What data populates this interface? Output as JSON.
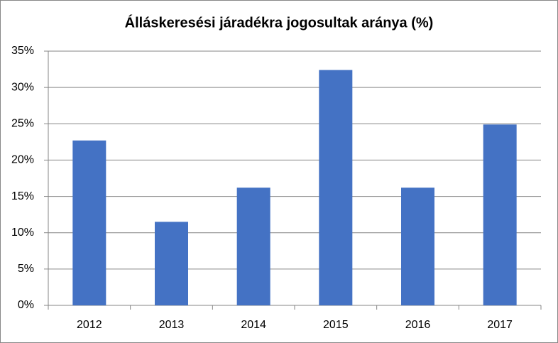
{
  "chart_data": {
    "type": "bar",
    "title": "Álláskeresési járadékra jogosultak aránya (%)",
    "categories": [
      "2012",
      "2013",
      "2014",
      "2015",
      "2016",
      "2017"
    ],
    "values": [
      22.7,
      11.5,
      16.2,
      32.4,
      16.2,
      24.9
    ],
    "color": "#4472c4",
    "ylim": [
      0,
      35
    ],
    "yticks": [
      {
        "value": 0,
        "label": "0%"
      },
      {
        "value": 5,
        "label": "5%"
      },
      {
        "value": 10,
        "label": "10%"
      },
      {
        "value": 15,
        "label": "15%"
      },
      {
        "value": 20,
        "label": "20%"
      },
      {
        "value": 25,
        "label": "25%"
      },
      {
        "value": 30,
        "label": "30%"
      },
      {
        "value": 35,
        "label": "35%"
      }
    ],
    "grid": true
  }
}
